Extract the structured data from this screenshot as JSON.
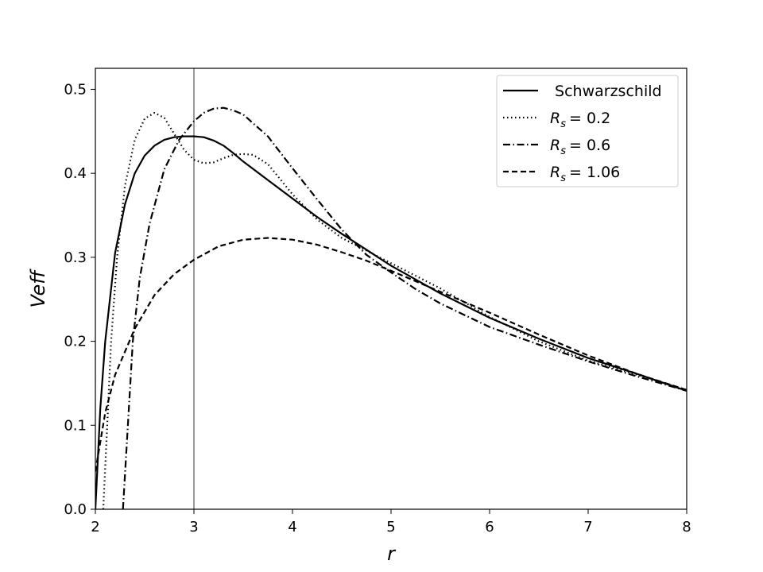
{
  "chart_data": {
    "type": "line",
    "title": "",
    "xlabel": "r",
    "ylabel": "Veff",
    "xlim": [
      2,
      8
    ],
    "ylim": [
      0,
      0.525
    ],
    "x_ticks": [
      "2",
      "3",
      "4",
      "5",
      "6",
      "7",
      "8"
    ],
    "y_ticks": [
      "0.0",
      "0.1",
      "0.2",
      "0.3",
      "0.4",
      "0.5"
    ],
    "vertical_line_x": 3,
    "grid": false,
    "legend_position": "top-right",
    "line_color": "#000000",
    "series": [
      {
        "name": "Schwarzschild",
        "legend_label": " Schwarzschild",
        "style": "solid",
        "points": [
          [
            2.0,
            0.0
          ],
          [
            2.05,
            0.12
          ],
          [
            2.1,
            0.2
          ],
          [
            2.2,
            0.305
          ],
          [
            2.3,
            0.363
          ],
          [
            2.4,
            0.4
          ],
          [
            2.5,
            0.421
          ],
          [
            2.6,
            0.433
          ],
          [
            2.7,
            0.44
          ],
          [
            2.8,
            0.443
          ],
          [
            2.9,
            0.444
          ],
          [
            3.0,
            0.444
          ],
          [
            3.1,
            0.443
          ],
          [
            3.2,
            0.439
          ],
          [
            3.3,
            0.433
          ],
          [
            3.4,
            0.424
          ],
          [
            3.5,
            0.414
          ],
          [
            3.75,
            0.392
          ],
          [
            4.0,
            0.37
          ],
          [
            4.25,
            0.348
          ],
          [
            4.5,
            0.328
          ],
          [
            4.75,
            0.309
          ],
          [
            5.0,
            0.29
          ],
          [
            5.5,
            0.257
          ],
          [
            6.0,
            0.228
          ],
          [
            6.5,
            0.203
          ],
          [
            7.0,
            0.18
          ],
          [
            7.5,
            0.161
          ],
          [
            8.0,
            0.141
          ]
        ]
      },
      {
        "name": "R_s = 0.2",
        "legend_label": "= 0.2",
        "style": "dotted",
        "points": [
          [
            2.08,
            0.0
          ],
          [
            2.12,
            0.1
          ],
          [
            2.16,
            0.2
          ],
          [
            2.22,
            0.3
          ],
          [
            2.3,
            0.385
          ],
          [
            2.4,
            0.44
          ],
          [
            2.5,
            0.465
          ],
          [
            2.6,
            0.472
          ],
          [
            2.7,
            0.466
          ],
          [
            2.8,
            0.447
          ],
          [
            2.9,
            0.428
          ],
          [
            3.0,
            0.416
          ],
          [
            3.1,
            0.412
          ],
          [
            3.2,
            0.413
          ],
          [
            3.3,
            0.418
          ],
          [
            3.4,
            0.422
          ],
          [
            3.5,
            0.423
          ],
          [
            3.6,
            0.422
          ],
          [
            3.75,
            0.411
          ],
          [
            4.0,
            0.375
          ],
          [
            4.25,
            0.345
          ],
          [
            4.5,
            0.323
          ],
          [
            4.75,
            0.308
          ],
          [
            5.0,
            0.293
          ],
          [
            5.5,
            0.263
          ],
          [
            6.0,
            0.229
          ],
          [
            6.5,
            0.2
          ],
          [
            7.0,
            0.177
          ],
          [
            7.5,
            0.16
          ],
          [
            8.0,
            0.142
          ]
        ]
      },
      {
        "name": "R_s = 0.6",
        "legend_label": "= 0.6",
        "style": "dashdot",
        "points": [
          [
            2.28,
            0.0
          ],
          [
            2.33,
            0.1
          ],
          [
            2.38,
            0.2
          ],
          [
            2.45,
            0.275
          ],
          [
            2.55,
            0.34
          ],
          [
            2.7,
            0.405
          ],
          [
            2.85,
            0.44
          ],
          [
            3.0,
            0.462
          ],
          [
            3.1,
            0.472
          ],
          [
            3.2,
            0.477
          ],
          [
            3.3,
            0.478
          ],
          [
            3.4,
            0.475
          ],
          [
            3.5,
            0.47
          ],
          [
            3.75,
            0.444
          ],
          [
            4.0,
            0.406
          ],
          [
            4.25,
            0.369
          ],
          [
            4.5,
            0.333
          ],
          [
            4.75,
            0.303
          ],
          [
            5.0,
            0.282
          ],
          [
            5.25,
            0.262
          ],
          [
            5.5,
            0.245
          ],
          [
            6.0,
            0.217
          ],
          [
            6.5,
            0.196
          ],
          [
            7.0,
            0.176
          ],
          [
            7.5,
            0.158
          ],
          [
            8.0,
            0.141
          ]
        ]
      },
      {
        "name": "R_s = 1.06",
        "legend_label": "= 1.06",
        "style": "dashed",
        "points": [
          [
            2.0,
            0.045
          ],
          [
            2.1,
            0.115
          ],
          [
            2.2,
            0.16
          ],
          [
            2.4,
            0.215
          ],
          [
            2.6,
            0.255
          ],
          [
            2.8,
            0.28
          ],
          [
            3.0,
            0.297
          ],
          [
            3.25,
            0.313
          ],
          [
            3.5,
            0.321
          ],
          [
            3.75,
            0.323
          ],
          [
            4.0,
            0.321
          ],
          [
            4.25,
            0.315
          ],
          [
            4.5,
            0.306
          ],
          [
            4.75,
            0.296
          ],
          [
            5.0,
            0.284
          ],
          [
            5.5,
            0.259
          ],
          [
            6.0,
            0.234
          ],
          [
            6.5,
            0.208
          ],
          [
            7.0,
            0.183
          ],
          [
            7.5,
            0.161
          ],
          [
            8.0,
            0.142
          ]
        ]
      }
    ]
  }
}
